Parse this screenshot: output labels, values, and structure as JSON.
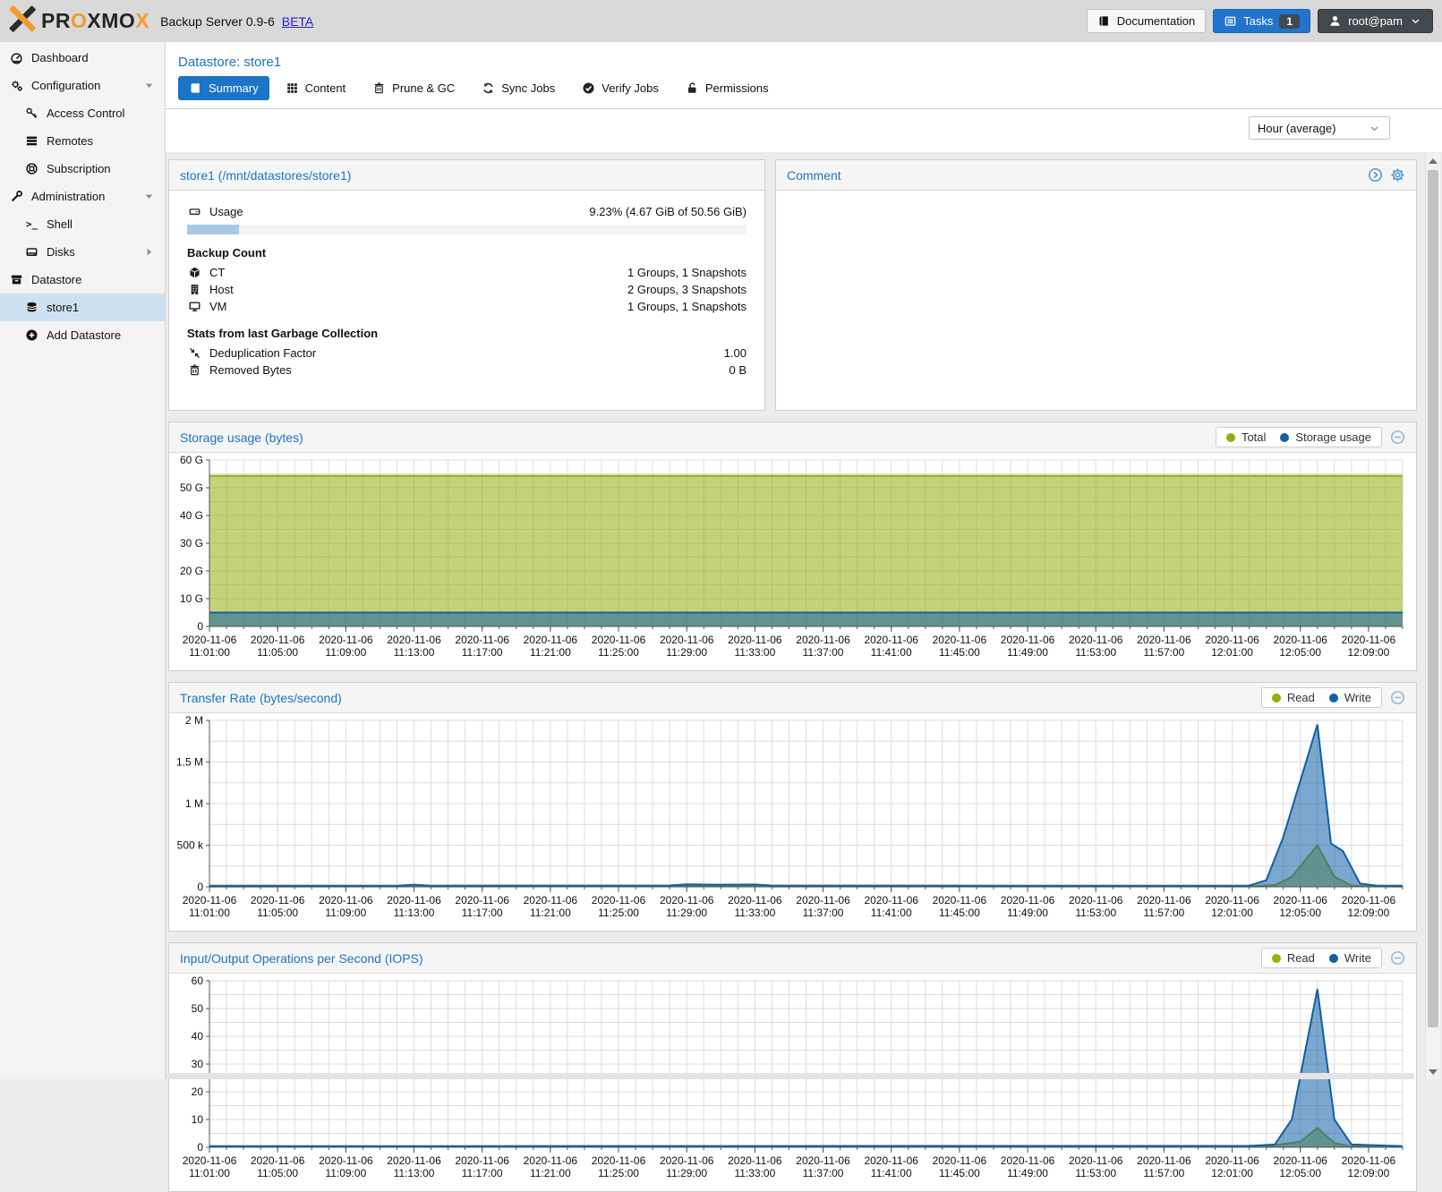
{
  "header": {
    "brand": "PROXMOX",
    "product": "Backup Server 0.9-6",
    "beta": "BETA",
    "buttons": {
      "documentation": {
        "label": "Documentation",
        "icon": "book"
      },
      "tasks": {
        "label": "Tasks",
        "badge": "1",
        "icon": "task-list"
      },
      "user": {
        "label": "root@pam",
        "icon": "user"
      }
    }
  },
  "sidebar": {
    "items": [
      {
        "label": "Dashboard",
        "icon": "gauge",
        "level": 0
      },
      {
        "label": "Configuration",
        "icon": "gears",
        "level": 0,
        "expander": "collapse"
      },
      {
        "label": "Access Control",
        "icon": "key",
        "level": 1
      },
      {
        "label": "Remotes",
        "icon": "server-list",
        "level": 1
      },
      {
        "label": "Subscription",
        "icon": "life-ring",
        "level": 1
      },
      {
        "label": "Administration",
        "icon": "wrench",
        "level": 0,
        "expander": "collapse"
      },
      {
        "label": "Shell",
        "icon": "terminal",
        "level": 1
      },
      {
        "label": "Disks",
        "icon": "hard-disk",
        "level": 1,
        "expander": "expand"
      },
      {
        "label": "Datastore",
        "icon": "archive-box",
        "level": 0
      },
      {
        "label": "store1",
        "icon": "database",
        "level": 1,
        "selected": true
      },
      {
        "label": "Add Datastore",
        "icon": "plus-circle",
        "level": 1
      }
    ]
  },
  "main": {
    "page_title": "Datastore: store1",
    "tabs": [
      {
        "label": "Summary",
        "icon": "book",
        "active": true
      },
      {
        "label": "Content",
        "icon": "grid"
      },
      {
        "label": "Prune & GC",
        "icon": "trash"
      },
      {
        "label": "Sync Jobs",
        "icon": "refresh"
      },
      {
        "label": "Verify Jobs",
        "icon": "check-circle"
      },
      {
        "label": "Permissions",
        "icon": "lock-open"
      }
    ],
    "timeframe_select": {
      "value": "Hour (average)"
    }
  },
  "store_panel": {
    "title": "store1 (/mnt/datastores/store1)",
    "usage": {
      "icon": "hdd",
      "label": "Usage",
      "value": "9.23% (4.67 GiB of 50.56 GiB)",
      "percent": 9.23
    },
    "backup_count": {
      "title": "Backup Count",
      "rows": [
        {
          "icon": "cube",
          "label": "CT",
          "value": "1 Groups, 1 Snapshots"
        },
        {
          "icon": "building",
          "label": "Host",
          "value": "2 Groups, 3 Snapshots"
        },
        {
          "icon": "monitor",
          "label": "VM",
          "value": "1 Groups, 1 Snapshots"
        }
      ]
    },
    "gc_stats": {
      "title": "Stats from last Garbage Collection",
      "rows": [
        {
          "icon": "compress-arrows",
          "label": "Deduplication Factor",
          "value": "1.00"
        },
        {
          "icon": "trash",
          "label": "Removed Bytes",
          "value": "0 B"
        }
      ]
    }
  },
  "comment_panel": {
    "title": "Comment",
    "tools": [
      "circle-chevron-right",
      "gear"
    ]
  },
  "colors": {
    "accent_blue": "#1b74c8",
    "series_green": "#94ae0a",
    "series_blue": "#115fa6",
    "selected_row": "#cde1f3",
    "proxmox_orange": "#f5992e"
  },
  "chart_data": [
    {
      "type": "area",
      "title": "Storage usage (bytes)",
      "legend": [
        {
          "label": "Total",
          "color": "#94ae0a"
        },
        {
          "label": "Storage usage",
          "color": "#115fa6"
        }
      ],
      "x_axis": {
        "date": "2020-11-06",
        "domain_minutes_after_11_00": [
          1,
          71
        ],
        "label_step_minutes": 4,
        "tick_label_times": [
          "11:01:00",
          "11:05:00",
          "11:09:00",
          "11:13:00",
          "11:17:00",
          "11:21:00",
          "11:25:00",
          "11:29:00",
          "11:33:00",
          "11:37:00",
          "11:41:00",
          "11:45:00",
          "11:49:00",
          "11:53:00",
          "11:57:00",
          "12:01:00",
          "12:05:00",
          "12:09:00"
        ]
      },
      "y_axis": {
        "min": 0,
        "max": 60000000000,
        "tick_step": 10000000000,
        "tick_labels": [
          "0",
          "10 G",
          "20 G",
          "30 G",
          "40 G",
          "50 G",
          "60 G"
        ]
      },
      "series": [
        {
          "name": "Total",
          "color": "#94ae0a",
          "points": [
            [
              1,
              54300000000
            ],
            [
              71,
              54300000000
            ]
          ]
        },
        {
          "name": "Storage usage",
          "color": "#115fa6",
          "points": [
            [
              1,
              5010000000
            ],
            [
              71,
              5010000000
            ]
          ]
        }
      ]
    },
    {
      "type": "area",
      "title": "Transfer Rate (bytes/second)",
      "legend": [
        {
          "label": "Read",
          "color": "#94ae0a"
        },
        {
          "label": "Write",
          "color": "#115fa6"
        }
      ],
      "x_axis": {
        "date": "2020-11-06",
        "domain_minutes_after_11_00": [
          1,
          71
        ],
        "label_step_minutes": 4,
        "tick_label_times": [
          "11:01:00",
          "11:05:00",
          "11:09:00",
          "11:13:00",
          "11:17:00",
          "11:21:00",
          "11:25:00",
          "11:29:00",
          "11:33:00",
          "11:37:00",
          "11:41:00",
          "11:45:00",
          "11:49:00",
          "11:53:00",
          "11:57:00",
          "12:01:00",
          "12:05:00",
          "12:09:00"
        ]
      },
      "y_axis": {
        "min": 0,
        "max": 2000000,
        "tick_step": 500000,
        "tick_labels": [
          "0",
          "500 k",
          "1 M",
          "1.5 M",
          "2 M"
        ]
      },
      "series": [
        {
          "name": "Read",
          "color": "#94ae0a",
          "points": [
            [
              1,
              3000
            ],
            [
              12,
              4000
            ],
            [
              13,
              13000
            ],
            [
              14,
              4000
            ],
            [
              28,
              5000
            ],
            [
              29,
              15000
            ],
            [
              33,
              13000
            ],
            [
              34,
              4000
            ],
            [
              62,
              4000
            ],
            [
              63.5,
              20000
            ],
            [
              64.5,
              120000
            ],
            [
              66,
              500000
            ],
            [
              67,
              120000
            ],
            [
              68,
              15000
            ],
            [
              69,
              5000
            ],
            [
              71,
              3000
            ]
          ]
        },
        {
          "name": "Write",
          "color": "#115fa6",
          "points": [
            [
              1,
              13000
            ],
            [
              12,
              14000
            ],
            [
              13,
              26000
            ],
            [
              14,
              14000
            ],
            [
              28,
              16000
            ],
            [
              29,
              30000
            ],
            [
              31,
              26000
            ],
            [
              33,
              28000
            ],
            [
              34,
              15000
            ],
            [
              60,
              13000
            ],
            [
              62,
              15000
            ],
            [
              63,
              80000
            ],
            [
              64,
              600000
            ],
            [
              66,
              1950000
            ],
            [
              66.8,
              520000
            ],
            [
              67.5,
              430000
            ],
            [
              68.5,
              40000
            ],
            [
              69.5,
              14000
            ],
            [
              71,
              13000
            ]
          ]
        }
      ]
    },
    {
      "type": "area",
      "title": "Input/Output Operations per Second (IOPS)",
      "legend": [
        {
          "label": "Read",
          "color": "#94ae0a"
        },
        {
          "label": "Write",
          "color": "#115fa6"
        }
      ],
      "x_axis": {
        "date": "2020-11-06",
        "domain_minutes_after_11_00": [
          1,
          71
        ],
        "label_step_minutes": 4,
        "tick_label_times": [
          "11:01:00",
          "11:05:00",
          "11:09:00",
          "11:13:00",
          "11:17:00",
          "11:21:00",
          "11:25:00",
          "11:29:00",
          "11:33:00",
          "11:37:00",
          "11:41:00",
          "11:45:00",
          "11:49:00",
          "11:53:00",
          "11:57:00",
          "12:01:00",
          "12:05:00",
          "12:09:00"
        ]
      },
      "y_axis": {
        "min": 0,
        "max": 60,
        "tick_step": 10,
        "tick_labels": [
          "0",
          "10",
          "20",
          "30",
          "40",
          "50",
          "60"
        ]
      },
      "series": [
        {
          "name": "Read",
          "color": "#94ae0a",
          "points": [
            [
              1,
              0.2
            ],
            [
              63,
              0.3
            ],
            [
              65,
              2
            ],
            [
              66,
              7
            ],
            [
              67,
              1.5
            ],
            [
              68,
              0.3
            ],
            [
              71,
              0.2
            ]
          ]
        },
        {
          "name": "Write",
          "color": "#115fa6",
          "points": [
            [
              1,
              0.4
            ],
            [
              62,
              0.5
            ],
            [
              63.5,
              1
            ],
            [
              64.5,
              10
            ],
            [
              66,
              57
            ],
            [
              67,
              10
            ],
            [
              68,
              1
            ],
            [
              71,
              0.4
            ]
          ]
        }
      ]
    }
  ]
}
